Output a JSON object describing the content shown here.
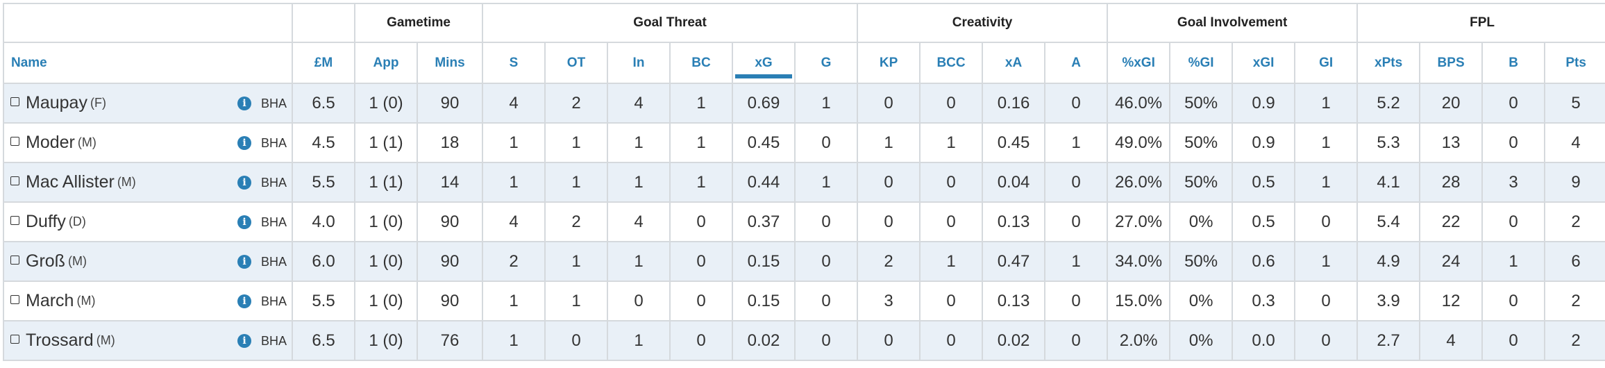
{
  "groups": [
    {
      "label": ""
    },
    {
      "label": ""
    },
    {
      "label": "Gametime"
    },
    {
      "label": "Goal Threat"
    },
    {
      "label": "Creativity"
    },
    {
      "label": "Goal Involvement"
    },
    {
      "label": "FPL"
    }
  ],
  "columns": [
    "Name",
    "£M",
    "App",
    "Mins",
    "S",
    "OT",
    "In",
    "BC",
    "xG",
    "G",
    "KP",
    "BCC",
    "xA",
    "A",
    "%xGI",
    "%GI",
    "xGI",
    "GI",
    "xPts",
    "BPS",
    "B",
    "Pts"
  ],
  "sorted_column": "xG",
  "accent_color": "#2a7fb5",
  "row_alt_color": "#e9f0f7",
  "info_icon": "info-circle-icon",
  "players": [
    {
      "name": "Maupay",
      "pos": "(F)",
      "team": "BHA",
      "values": [
        "6.5",
        "1 (0)",
        "90",
        "4",
        "2",
        "4",
        "1",
        "0.69",
        "1",
        "0",
        "0",
        "0.16",
        "0",
        "46.0%",
        "50%",
        "0.9",
        "1",
        "5.2",
        "20",
        "0",
        "5"
      ]
    },
    {
      "name": "Moder",
      "pos": "(M)",
      "team": "BHA",
      "values": [
        "4.5",
        "1 (1)",
        "18",
        "1",
        "1",
        "1",
        "1",
        "0.45",
        "0",
        "1",
        "1",
        "0.45",
        "1",
        "49.0%",
        "50%",
        "0.9",
        "1",
        "5.3",
        "13",
        "0",
        "4"
      ]
    },
    {
      "name": "Mac Allister",
      "pos": "(M)",
      "team": "BHA",
      "values": [
        "5.5",
        "1 (1)",
        "14",
        "1",
        "1",
        "1",
        "1",
        "0.44",
        "1",
        "0",
        "0",
        "0.04",
        "0",
        "26.0%",
        "50%",
        "0.5",
        "1",
        "4.1",
        "28",
        "3",
        "9"
      ]
    },
    {
      "name": "Duffy",
      "pos": "(D)",
      "team": "BHA",
      "values": [
        "4.0",
        "1 (0)",
        "90",
        "4",
        "2",
        "4",
        "0",
        "0.37",
        "0",
        "0",
        "0",
        "0.13",
        "0",
        "27.0%",
        "0%",
        "0.5",
        "0",
        "5.4",
        "22",
        "0",
        "2"
      ]
    },
    {
      "name": "Groß",
      "pos": "(M)",
      "team": "BHA",
      "values": [
        "6.0",
        "1 (0)",
        "90",
        "2",
        "1",
        "1",
        "0",
        "0.15",
        "0",
        "2",
        "1",
        "0.47",
        "1",
        "34.0%",
        "50%",
        "0.6",
        "1",
        "4.9",
        "24",
        "1",
        "6"
      ]
    },
    {
      "name": "March",
      "pos": "(M)",
      "team": "BHA",
      "values": [
        "5.5",
        "1 (0)",
        "90",
        "1",
        "1",
        "0",
        "0",
        "0.15",
        "0",
        "3",
        "0",
        "0.13",
        "0",
        "15.0%",
        "0%",
        "0.3",
        "0",
        "3.9",
        "12",
        "0",
        "2"
      ]
    },
    {
      "name": "Trossard",
      "pos": "(M)",
      "team": "BHA",
      "values": [
        "6.5",
        "1 (0)",
        "76",
        "1",
        "0",
        "1",
        "0",
        "0.02",
        "0",
        "0",
        "0",
        "0.02",
        "0",
        "2.0%",
        "0%",
        "0.0",
        "0",
        "2.7",
        "4",
        "0",
        "2"
      ]
    }
  ]
}
